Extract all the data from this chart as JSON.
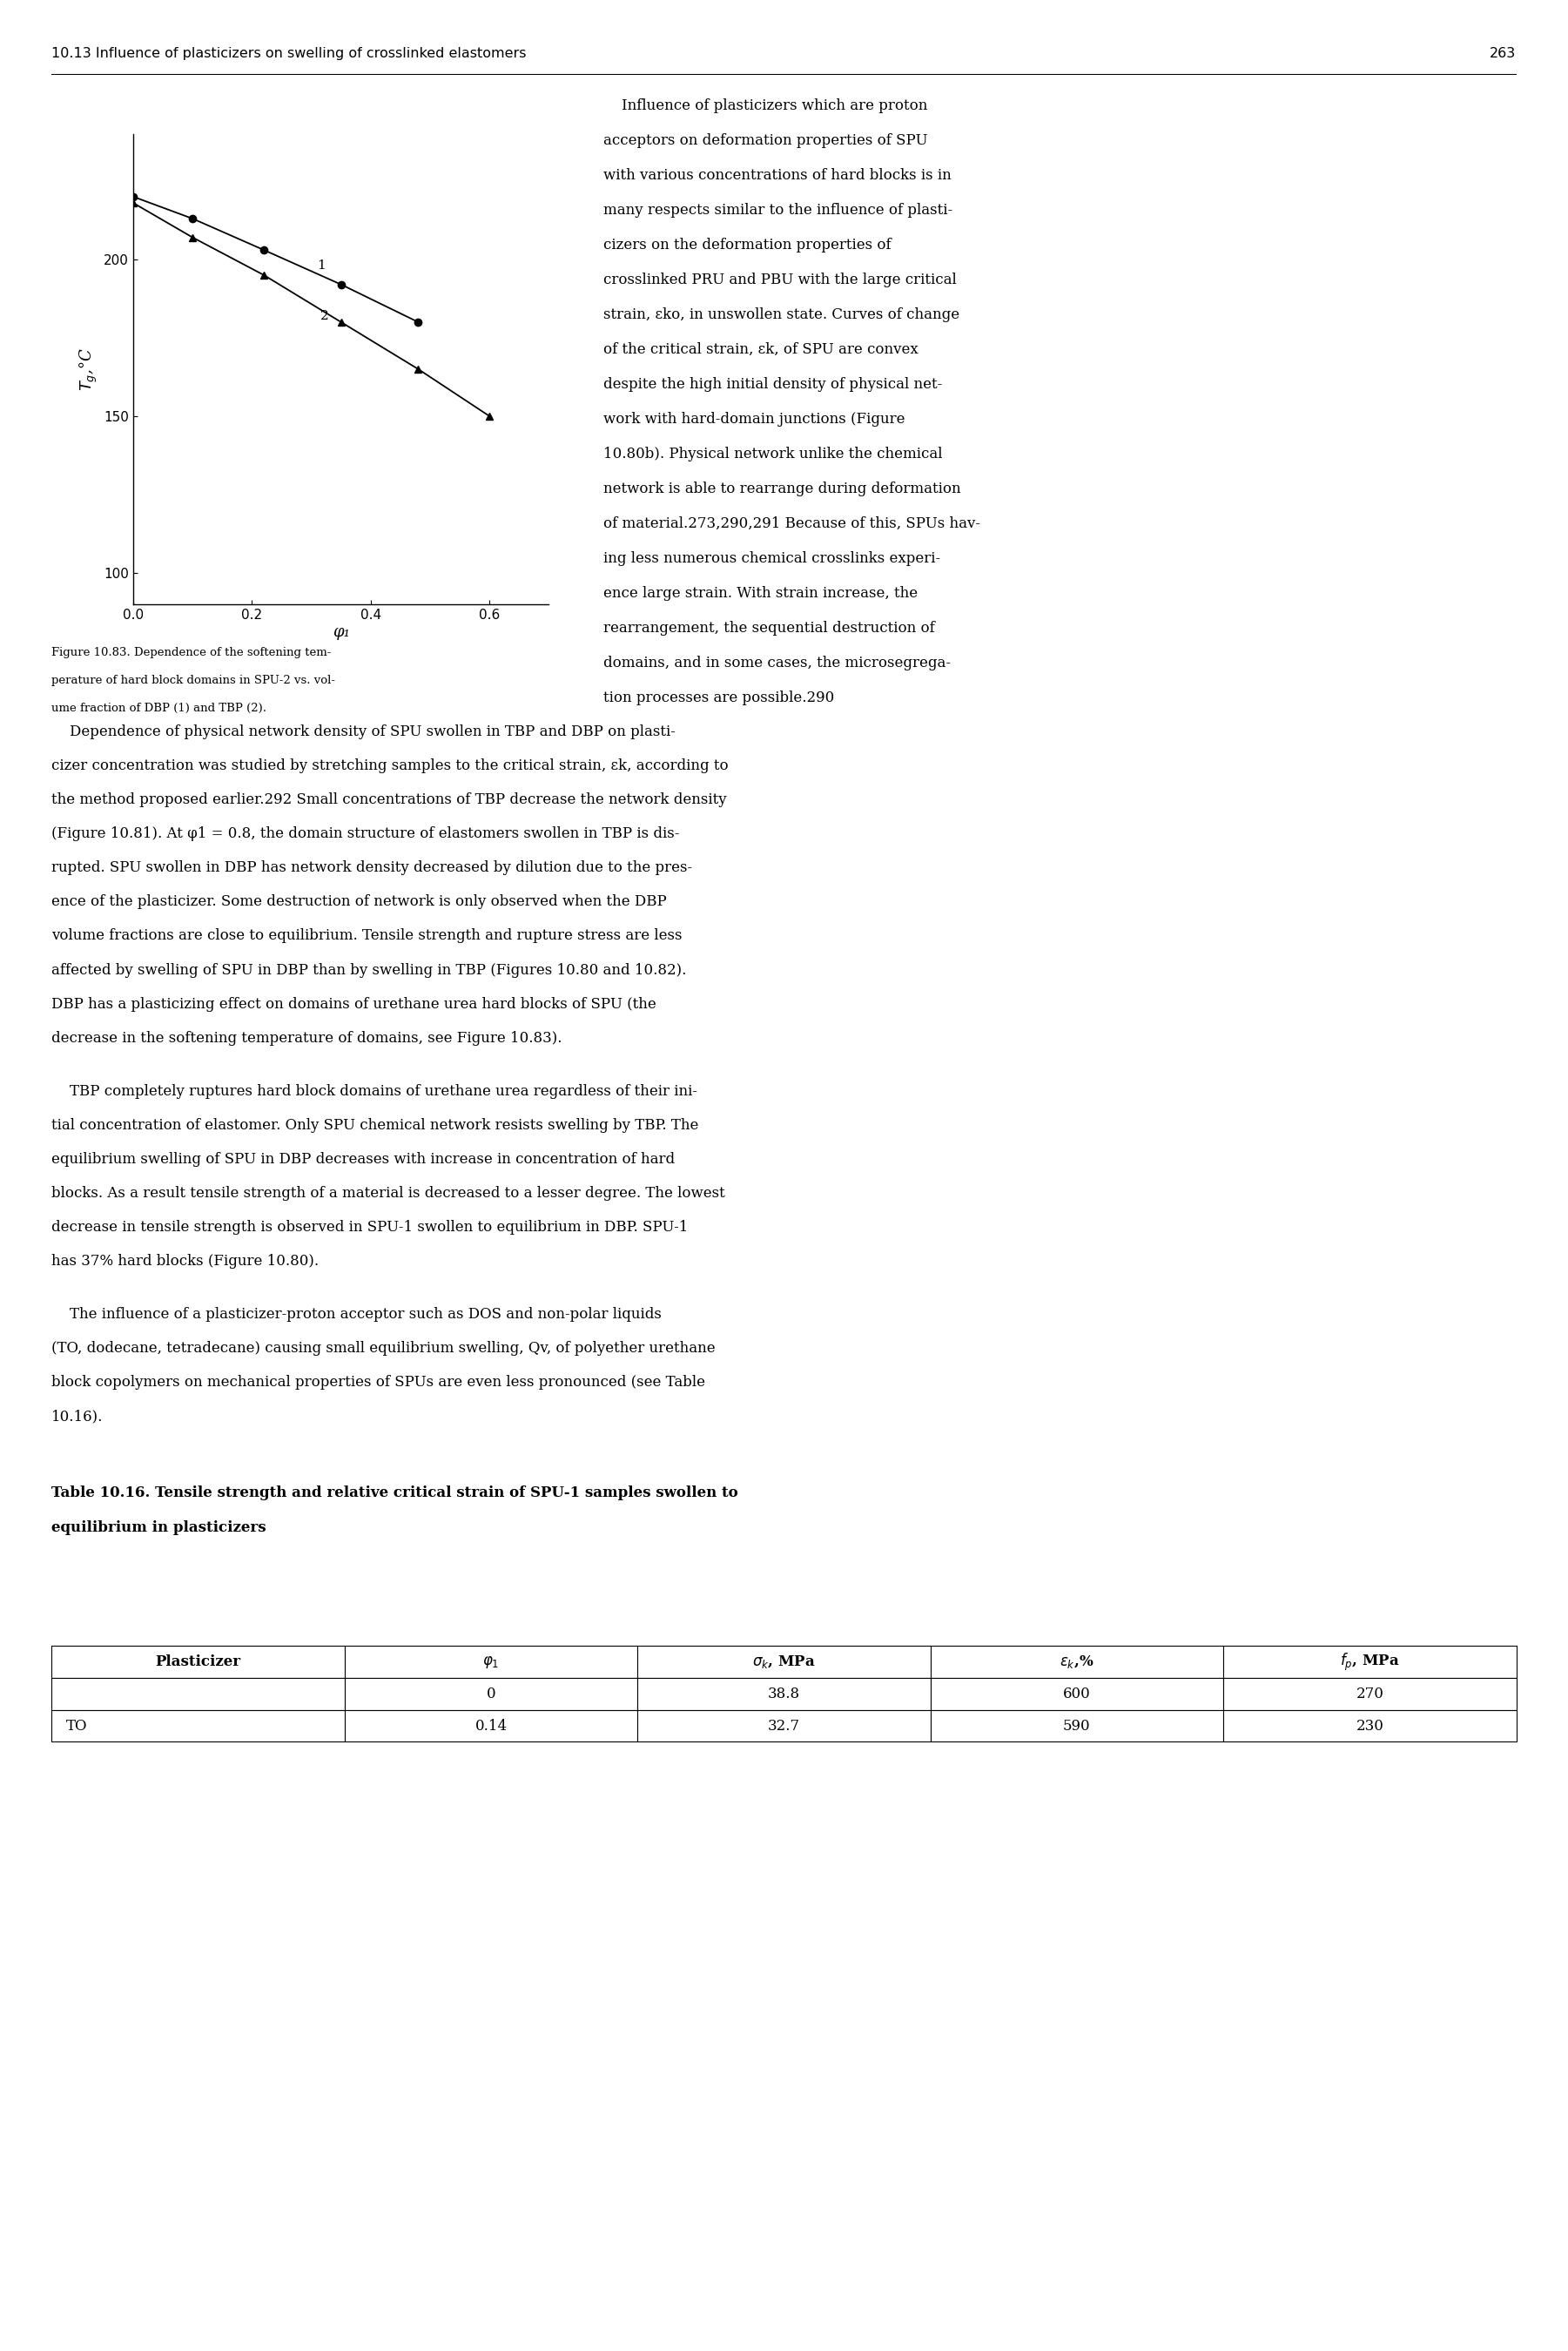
{
  "title_header": "10.13 Influence of plasticizers on swelling of crosslinked elastomers",
  "page_number": "263",
  "ylabel": "$T_g$,°C",
  "xlabel": "φ₁",
  "xlim": [
    0,
    0.7
  ],
  "ylim": [
    90,
    240
  ],
  "yticks": [
    100,
    150,
    200
  ],
  "xticks": [
    0,
    0.2,
    0.4,
    0.6
  ],
  "series1_x": [
    0.0,
    0.1,
    0.22,
    0.35,
    0.48
  ],
  "series1_y": [
    220,
    213,
    203,
    192,
    180
  ],
  "series2_x": [
    0.0,
    0.1,
    0.22,
    0.35,
    0.48,
    0.6
  ],
  "series2_y": [
    218,
    207,
    195,
    180,
    165,
    150
  ],
  "label1": "1",
  "label2": "2",
  "bg_color": "#ffffff",
  "line_color": "#000000",
  "marker1": "o",
  "marker2": "^",
  "markersize": 6,
  "linewidth": 1.3,
  "cap_lines": [
    "Figure 10.83. Dependence of the softening tem-",
    "perature of hard block domains in SPU-2 vs. vol-",
    "ume fraction of DBP (1) and TBP (2)."
  ],
  "right_col_lines": [
    "    Influence of plasticizers which are proton",
    "acceptors on deformation properties of SPU",
    "with various concentrations of hard blocks is in",
    "many respects similar to the influence of plasti-",
    "cizers on the deformation properties of",
    "crosslinked PRU and PBU with the large critical",
    "strain, εko, in unswollen state. Curves of change",
    "of the critical strain, εk, of SPU are convex",
    "despite the high initial density of physical net-",
    "work with hard-domain junctions (Figure",
    "10.80b). Physical network unlike the chemical",
    "network is able to rearrange during deformation",
    "of material.273,290,291 Because of this, SPUs hav-",
    "ing less numerous chemical crosslinks experi-",
    "ence large strain. With strain increase, the",
    "rearrangement, the sequential destruction of",
    "domains, and in some cases, the microsegrega-",
    "tion processes are possible.290"
  ],
  "body_para1_lines": [
    "    Dependence of physical network density of SPU swollen in TBP and DBP on plasti-",
    "cizer concentration was studied by stretching samples to the critical strain, εk, according to",
    "the method proposed earlier.292 Small concentrations of TBP decrease the network density",
    "(Figure 10.81). At φ1 = 0.8, the domain structure of elastomers swollen in TBP is dis-",
    "rupted. SPU swollen in DBP has network density decreased by dilution due to the pres-",
    "ence of the plasticizer. Some destruction of network is only observed when the DBP",
    "volume fractions are close to equilibrium. Tensile strength and rupture stress are less",
    "affected by swelling of SPU in DBP than by swelling in TBP (Figures 10.80 and 10.82).",
    "DBP has a plasticizing effect on domains of urethane urea hard blocks of SPU (the",
    "decrease in the softening temperature of domains, see Figure 10.83)."
  ],
  "body_para2_lines": [
    "    TBP completely ruptures hard block domains of urethane urea regardless of their ini-",
    "tial concentration of elastomer. Only SPU chemical network resists swelling by TBP. The",
    "equilibrium swelling of SPU in DBP decreases with increase in concentration of hard",
    "blocks. As a result tensile strength of a material is decreased to a lesser degree. The lowest",
    "decrease in tensile strength is observed in SPU-1 swollen to equilibrium in DBP. SPU-1",
    "has 37% hard blocks (Figure 10.80)."
  ],
  "body_para3_lines": [
    "    The influence of a plasticizer-proton acceptor such as DOS and non-polar liquids",
    "(TO, dodecane, tetradecane) causing small equilibrium swelling, Qv, of polyether urethane",
    "block copolymers on mechanical properties of SPUs are even less pronounced (see Table",
    "10.16)."
  ],
  "table_title_lines": [
    "Table 10.16. Tensile strength and relative critical strain of SPU-1 samples swollen to",
    "equilibrium in plasticizers"
  ],
  "table_headers": [
    "Plasticizer",
    "φ1",
    "σk, MPa",
    "εk,%",
    "fp, MPa"
  ],
  "table_rows": [
    [
      "",
      "0",
      "38.8",
      "600",
      "270"
    ],
    [
      "TO",
      "0.14",
      "32.7",
      "590",
      "230"
    ]
  ]
}
